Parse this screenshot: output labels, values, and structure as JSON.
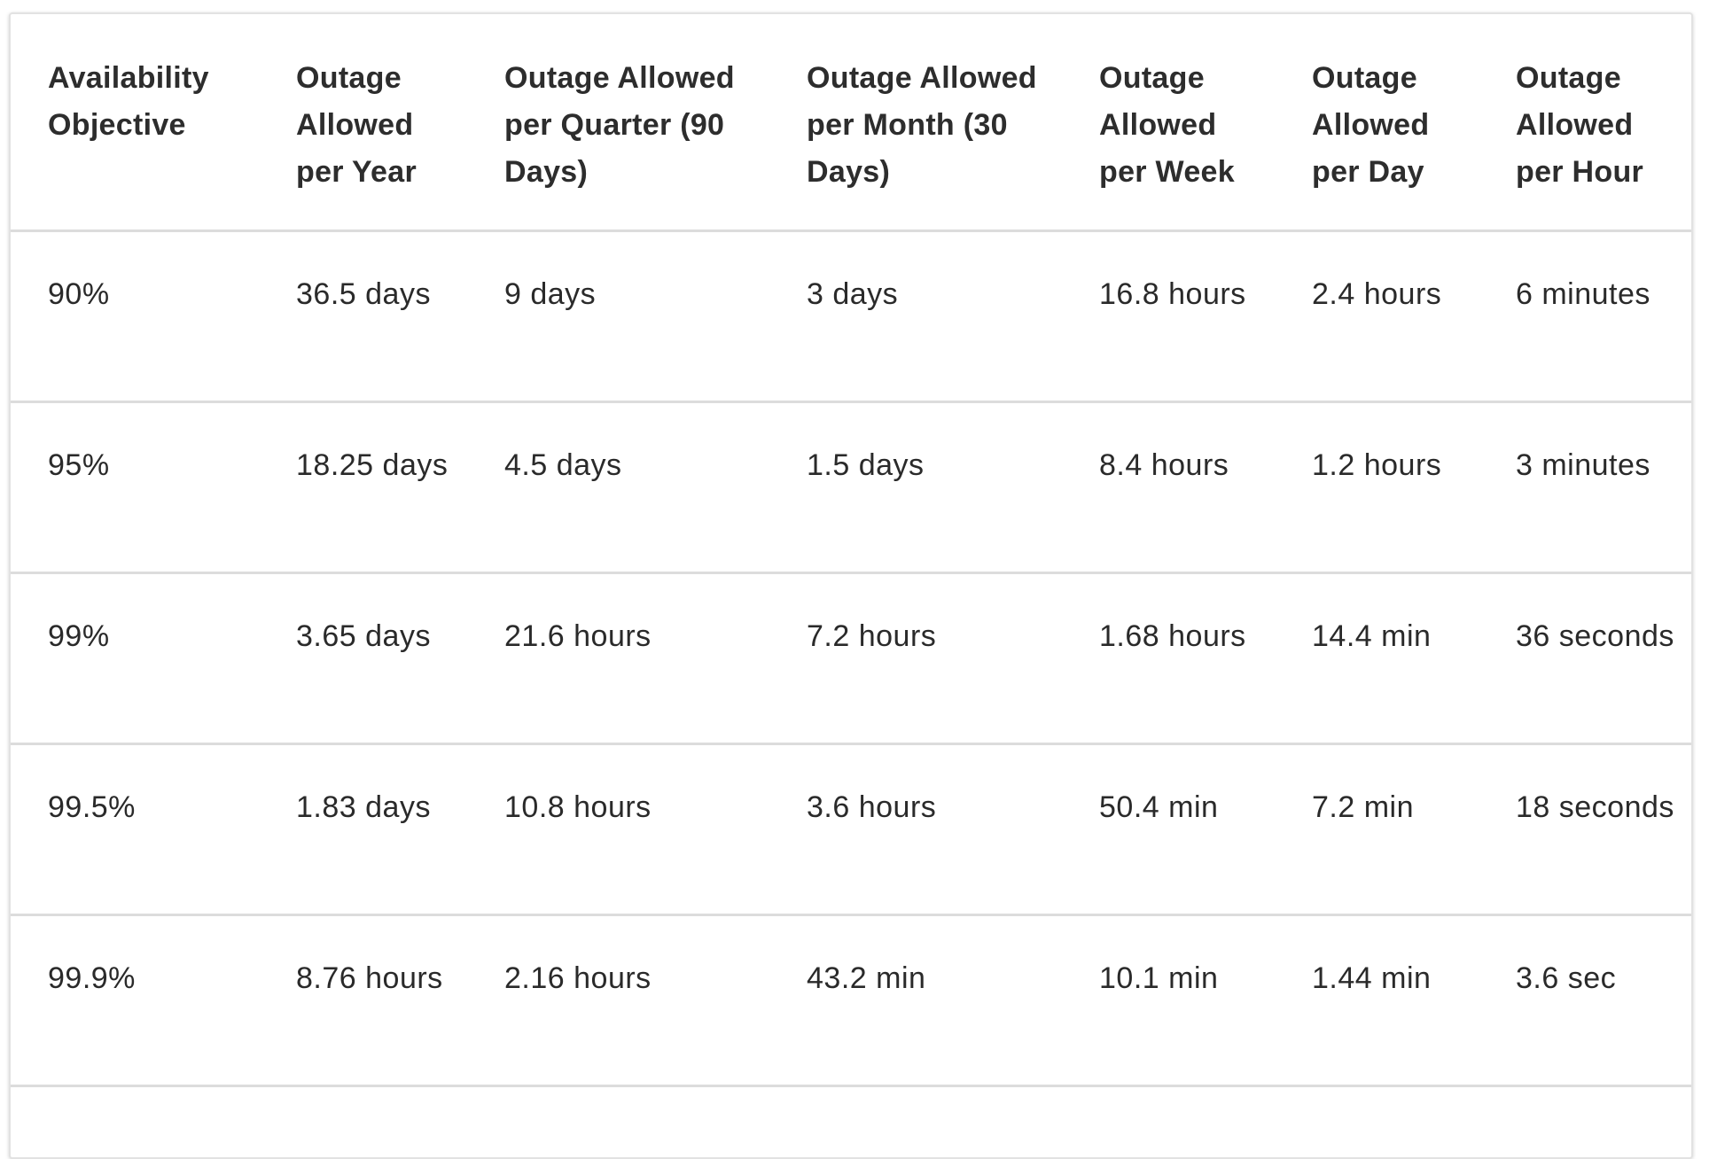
{
  "table": {
    "headers": [
      "Availability Objective",
      "Outage Allowed per Year",
      "Outage Allowed per Quarter (90 Days)",
      "Outage Allowed per Month (30 Days)",
      "Outage Allowed per Week",
      "Outage Allowed per Day",
      "Outage Allowed per Hour"
    ],
    "rows": [
      [
        "90%",
        "36.5 days",
        "9 days",
        "3 days",
        "16.8 hours",
        "2.4 hours",
        "6 minutes"
      ],
      [
        "95%",
        "18.25 days",
        "4.5 days",
        "1.5 days",
        "8.4 hours",
        "1.2 hours",
        "3 minutes"
      ],
      [
        "99%",
        "3.65 days",
        "21.6 hours",
        "7.2 hours",
        "1.68 hours",
        "14.4 min",
        "36 seconds"
      ],
      [
        "99.5%",
        "1.83 days",
        "10.8 hours",
        "3.6 hours",
        "50.4 min",
        "7.2 min",
        "18 seconds"
      ],
      [
        "99.9%",
        "8.76 hours",
        "2.16 hours",
        "43.2 min",
        "10.1 min",
        "1.44 min",
        "3.6 sec"
      ]
    ]
  }
}
